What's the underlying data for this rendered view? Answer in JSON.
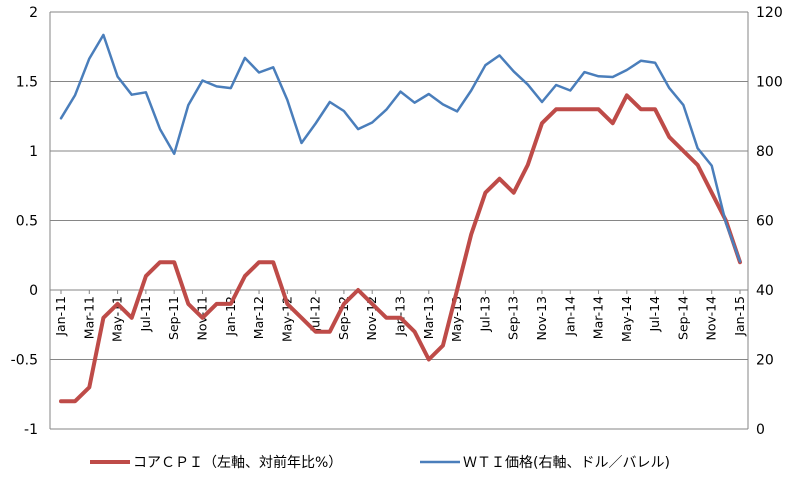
{
  "chart_data": {
    "type": "line",
    "title": "",
    "grid": "horizontal",
    "legend_position": "bottom",
    "x": [
      "Jan-11",
      "Feb-11",
      "Mar-11",
      "Apr-11",
      "May-11",
      "Jun-11",
      "Jul-11",
      "Aug-11",
      "Sep-11",
      "Oct-11",
      "Nov-11",
      "Dec-11",
      "Jan-12",
      "Feb-12",
      "Mar-12",
      "Apr-12",
      "May-12",
      "Jun-12",
      "Jul-12",
      "Aug-12",
      "Sep-12",
      "Oct-12",
      "Nov-12",
      "Dec-12",
      "Jan-13",
      "Feb-13",
      "Mar-13",
      "Apr-13",
      "May-13",
      "Jun-13",
      "Jul-13",
      "Aug-13",
      "Sep-13",
      "Oct-13",
      "Nov-13",
      "Dec-13",
      "Jan-14",
      "Feb-14",
      "Mar-14",
      "Apr-14",
      "May-14",
      "Jun-14",
      "Jul-14",
      "Aug-14",
      "Sep-14",
      "Oct-14",
      "Nov-14",
      "Dec-14",
      "Jan-15"
    ],
    "x_tick_labels": [
      "Jan-11",
      "Mar-11",
      "May-11",
      "Jul-11",
      "Sep-11",
      "Nov-11",
      "Jan-12",
      "Mar-12",
      "May-12",
      "Jul-12",
      "Sep-12",
      "Nov-12",
      "Jan-13",
      "Mar-13",
      "May-13",
      "Jul-13",
      "Sep-13",
      "Nov-13",
      "Jan-14",
      "Mar-14",
      "May-14",
      "Jul-14",
      "Sep-14",
      "Nov-14",
      "Jan-15"
    ],
    "y_left": {
      "min": -1,
      "max": 2,
      "ticks": [
        "-1",
        "-0.5",
        "0",
        "0.5",
        "1",
        "1.5",
        "2"
      ]
    },
    "y_right": {
      "min": 0,
      "max": 120,
      "ticks": [
        "0",
        "20",
        "40",
        "60",
        "80",
        "100",
        "120"
      ]
    },
    "series": [
      {
        "name": "コアＣＰＩ（左軸、対前年比%）",
        "axis": "left",
        "color": "#BE4B48",
        "values": [
          -0.8,
          -0.8,
          -0.7,
          -0.2,
          -0.1,
          -0.2,
          0.1,
          0.2,
          0.2,
          -0.1,
          -0.2,
          -0.1,
          -0.1,
          0.1,
          0.2,
          0.2,
          -0.1,
          -0.2,
          -0.3,
          -0.3,
          -0.1,
          0.0,
          -0.1,
          -0.2,
          -0.2,
          -0.3,
          -0.5,
          -0.4,
          0.0,
          0.4,
          0.7,
          0.8,
          0.7,
          0.9,
          1.2,
          1.3,
          1.3,
          1.3,
          1.3,
          1.2,
          1.4,
          1.3,
          1.3,
          1.1,
          1.0,
          0.9,
          0.7,
          0.5,
          0.2
        ]
      },
      {
        "name": "ＷＴＩ価格(右軸、ドル／バレル)",
        "axis": "right",
        "color": "#4A7EBB",
        "values": [
          89.4,
          96.1,
          106.6,
          113.4,
          101.4,
          96.2,
          96.9,
          86.3,
          79.2,
          93.2,
          100.3,
          98.6,
          98.1,
          106.8,
          102.6,
          104.1,
          94.7,
          82.3,
          87.9,
          94.1,
          91.5,
          86.3,
          88.2,
          91.9,
          97.1,
          93.9,
          96.4,
          93.4,
          91.4,
          97.4,
          104.7,
          107.5,
          102.9,
          99.1,
          94.1,
          99.0,
          97.4,
          102.7,
          101.5,
          101.3,
          103.3,
          106.0,
          105.4,
          98.1,
          93.2,
          80.8,
          75.8,
          59.3,
          48.2
        ]
      }
    ]
  }
}
